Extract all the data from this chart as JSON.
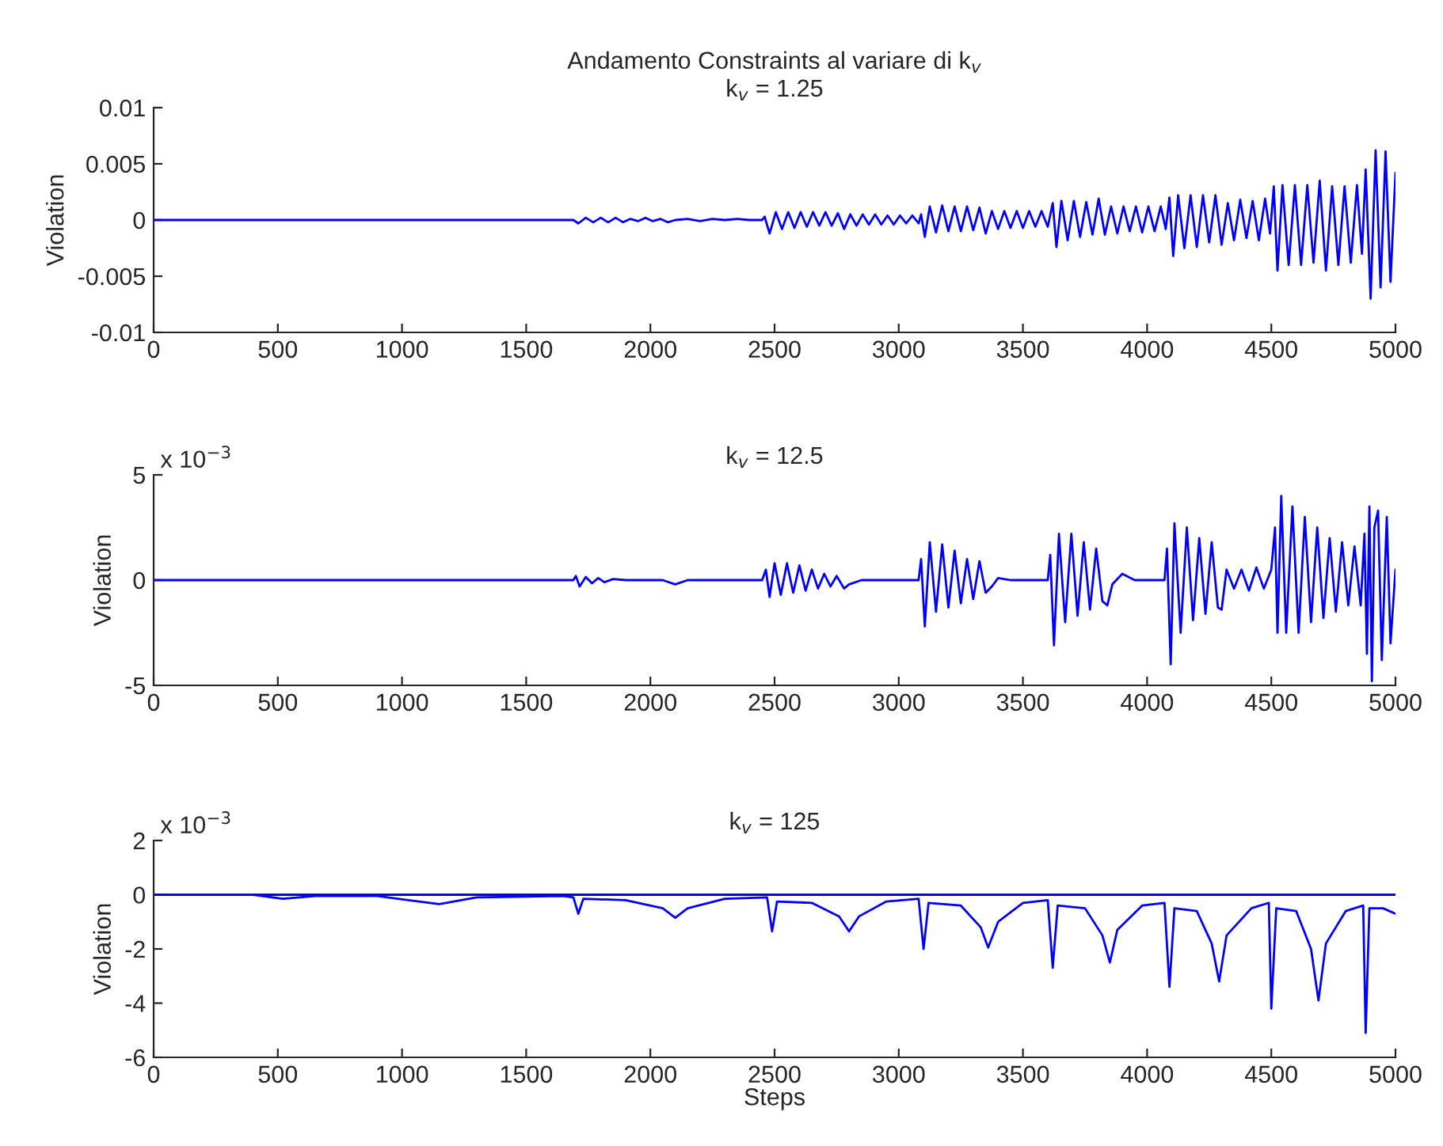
{
  "chart_data": [
    {
      "type": "line",
      "title": "Andamento Constraints al variare di k$_{v}$",
      "subtitle": "k$_{v}$ = 1.25",
      "ylabel": "Violation",
      "xlim": [
        0,
        5000
      ],
      "xticks": [
        0,
        500,
        1000,
        1500,
        2000,
        2500,
        3000,
        3500,
        4000,
        4500,
        5000
      ],
      "ylim": [
        -0.01,
        0.01
      ],
      "yticks": [
        -0.01,
        -0.005,
        0,
        0.005,
        0.01
      ],
      "grid": false,
      "series": [
        {
          "color": "#0000ff",
          "x": [
            0,
            1690,
            1710,
            1740,
            1770,
            1800,
            1830,
            1860,
            1890,
            1920,
            1950,
            1980,
            2010,
            2040,
            2070,
            2100,
            2150,
            2200,
            2250,
            2300,
            2350,
            2400,
            2450,
            2460,
            2480,
            2505,
            2530,
            2555,
            2580,
            2605,
            2630,
            2655,
            2680,
            2705,
            2730,
            2755,
            2780,
            2805,
            2830,
            2855,
            2880,
            2905,
            2930,
            2955,
            2980,
            3005,
            3030,
            3055,
            3080,
            3090,
            3105,
            3125,
            3150,
            3175,
            3200,
            3225,
            3250,
            3275,
            3300,
            3325,
            3350,
            3375,
            3400,
            3425,
            3450,
            3475,
            3500,
            3525,
            3550,
            3575,
            3600,
            3620,
            3635,
            3655,
            3680,
            3705,
            3730,
            3755,
            3780,
            3805,
            3830,
            3855,
            3880,
            3905,
            3930,
            3955,
            3980,
            4005,
            4030,
            4055,
            4075,
            4090,
            4105,
            4125,
            4150,
            4175,
            4200,
            4225,
            4250,
            4275,
            4300,
            4325,
            4350,
            4375,
            4400,
            4425,
            4450,
            4475,
            4495,
            4510,
            4525,
            4545,
            4570,
            4595,
            4620,
            4645,
            4670,
            4695,
            4720,
            4745,
            4770,
            4795,
            4820,
            4845,
            4865,
            4880,
            4900,
            4920,
            4940,
            4960,
            4980,
            5000
          ],
          "values": [
            0,
            0,
            -0.0003,
            0.0002,
            -0.0002,
            0.0002,
            -0.0002,
            0.0002,
            -0.0002,
            0.0001,
            -0.0001,
            0.0002,
            -0.0001,
            0.0001,
            -0.0002,
            0,
            0.0001,
            -0.0001,
            0.0001,
            0,
            0.0001,
            0,
            0,
            0.0003,
            -0.0012,
            0.0007,
            -0.0008,
            0.0007,
            -0.0007,
            0.0007,
            -0.0006,
            0.0007,
            -0.0005,
            0.0007,
            -0.0005,
            0.0006,
            -0.0008,
            0.0005,
            -0.0005,
            0.0005,
            -0.0004,
            0.0005,
            -0.0004,
            0.0004,
            -0.0004,
            0.0004,
            -0.0003,
            0.0004,
            -0.0003,
            0.0005,
            -0.0015,
            0.0012,
            -0.0011,
            0.0013,
            -0.001,
            0.0012,
            -0.001,
            0.0012,
            -0.0009,
            0.0011,
            -0.0012,
            0.0008,
            -0.0008,
            0.0008,
            -0.0007,
            0.0008,
            -0.0007,
            0.0008,
            -0.0006,
            0.0008,
            -0.0006,
            0.0015,
            -0.0024,
            0.0017,
            -0.0018,
            0.0017,
            -0.0015,
            0.0016,
            -0.0013,
            0.0019,
            -0.0013,
            0.0012,
            -0.0012,
            0.0012,
            -0.001,
            0.0012,
            -0.0011,
            0.0012,
            -0.001,
            0.0012,
            -0.0008,
            0.002,
            -0.0032,
            0.0022,
            -0.0025,
            0.0022,
            -0.0024,
            0.0022,
            -0.002,
            0.0022,
            -0.0022,
            0.0015,
            -0.0018,
            0.0018,
            -0.0016,
            0.0017,
            -0.0018,
            0.0019,
            -0.0012,
            0.003,
            -0.0045,
            0.0031,
            -0.004,
            0.0031,
            -0.004,
            0.0031,
            -0.0038,
            0.0035,
            -0.0045,
            0.003,
            -0.004,
            0.003,
            -0.0038,
            0.0031,
            -0.003,
            0.0045,
            -0.007,
            0.0062,
            -0.006,
            0.0061,
            -0.0055,
            0.0042
          ]
        }
      ]
    },
    {
      "type": "line",
      "title": "k$_{v}$ = 12.5",
      "ylabel": "Violation",
      "annotations": [
        "x 10$^{−3}$"
      ],
      "xlim": [
        0,
        5000
      ],
      "xticks": [
        0,
        500,
        1000,
        1500,
        2000,
        2500,
        3000,
        3500,
        4000,
        4500,
        5000
      ],
      "ylim": [
        -5,
        5
      ],
      "yticks": [
        -5,
        0,
        5
      ],
      "grid": false,
      "series": [
        {
          "color": "#0000ff",
          "x": [
            0,
            1690,
            1700,
            1715,
            1740,
            1765,
            1790,
            1815,
            1850,
            1900,
            2050,
            2100,
            2150,
            2450,
            2465,
            2480,
            2500,
            2525,
            2550,
            2575,
            2600,
            2625,
            2650,
            2675,
            2700,
            2725,
            2750,
            2780,
            2800,
            2850,
            3080,
            3090,
            3105,
            3125,
            3150,
            3175,
            3200,
            3225,
            3250,
            3275,
            3300,
            3325,
            3350,
            3375,
            3400,
            3450,
            3600,
            3610,
            3625,
            3645,
            3670,
            3695,
            3720,
            3745,
            3770,
            3795,
            3820,
            3840,
            3860,
            3900,
            3950,
            4070,
            4080,
            4095,
            4110,
            4135,
            4160,
            4185,
            4210,
            4235,
            4260,
            4285,
            4300,
            4320,
            4350,
            4380,
            4410,
            4440,
            4470,
            4500,
            4515,
            4525,
            4540,
            4560,
            4585,
            4610,
            4635,
            4660,
            4685,
            4710,
            4735,
            4760,
            4785,
            4810,
            4835,
            4860,
            4875,
            4885,
            4895,
            4905,
            4915,
            4930,
            4945,
            4965,
            4980,
            5000
          ],
          "values": [
            0,
            0,
            0.2,
            -0.3,
            0.15,
            -0.15,
            0.1,
            -0.1,
            0.05,
            0,
            0,
            -0.2,
            0,
            0,
            0.5,
            -0.8,
            0.8,
            -0.7,
            0.8,
            -0.6,
            0.7,
            -0.5,
            0.5,
            -0.4,
            0.3,
            -0.3,
            0.2,
            -0.4,
            -0.2,
            0,
            0,
            1.0,
            -2.2,
            1.8,
            -1.5,
            1.7,
            -1.3,
            1.4,
            -1.1,
            1.0,
            -0.9,
            0.9,
            -0.6,
            -0.3,
            0.1,
            0,
            0,
            1.2,
            -3.1,
            2.2,
            -2.0,
            2.2,
            -1.7,
            1.8,
            -1.4,
            1.5,
            -1.0,
            -1.2,
            -0.2,
            0.3,
            0,
            0,
            1.5,
            -4.0,
            2.7,
            -2.5,
            2.5,
            -1.9,
            2.0,
            -1.6,
            1.8,
            -1.3,
            -1.4,
            0.5,
            -0.4,
            0.5,
            -0.5,
            0.6,
            -0.4,
            0.5,
            2.5,
            -2.5,
            4.0,
            -2.5,
            3.5,
            -2.5,
            3.0,
            -2.0,
            2.5,
            -1.8,
            2.0,
            -1.5,
            1.8,
            -1.2,
            1.6,
            -1.2,
            2.2,
            -3.5,
            3.5,
            -4.8,
            2.5,
            3.3,
            -3.8,
            3.0,
            -3.0,
            0.5
          ]
        }
      ]
    },
    {
      "type": "line",
      "title": "k$_{v}$ = 125",
      "ylabel": "Violation",
      "xlabel": "Steps",
      "annotations": [
        "x 10$^{−3}$"
      ],
      "xlim": [
        0,
        5000
      ],
      "xticks": [
        0,
        500,
        1000,
        1500,
        2000,
        2500,
        3000,
        3500,
        4000,
        4500,
        5000
      ],
      "ylim": [
        -6,
        2
      ],
      "yticks": [
        -6,
        -4,
        -2,
        0,
        2
      ],
      "grid": false,
      "series": [
        {
          "color": "#0000ff",
          "x": [
            0,
            5000
          ],
          "values": [
            0,
            0
          ]
        },
        {
          "color": "#0000ff",
          "x": [
            0,
            400,
            520,
            650,
            900,
            1150,
            1300,
            1650,
            1690,
            1710,
            1730,
            1900,
            2050,
            2100,
            2150,
            2300,
            2470,
            2490,
            2510,
            2650,
            2760,
            2800,
            2840,
            2950,
            3080,
            3100,
            3120,
            3250,
            3330,
            3360,
            3400,
            3500,
            3600,
            3620,
            3640,
            3750,
            3820,
            3850,
            3880,
            3980,
            4070,
            4090,
            4110,
            4200,
            4260,
            4290,
            4320,
            4420,
            4490,
            4500,
            4520,
            4600,
            4660,
            4690,
            4720,
            4800,
            4870,
            4880,
            4895,
            4950,
            5000
          ],
          "values": [
            0,
            0,
            -0.15,
            -0.05,
            -0.05,
            -0.35,
            -0.1,
            -0.05,
            -0.1,
            -0.7,
            -0.15,
            -0.2,
            -0.5,
            -0.85,
            -0.5,
            -0.15,
            -0.1,
            -1.35,
            -0.25,
            -0.3,
            -0.8,
            -1.35,
            -0.8,
            -0.25,
            -0.15,
            -2.0,
            -0.3,
            -0.4,
            -1.2,
            -1.95,
            -1.0,
            -0.3,
            -0.2,
            -2.7,
            -0.4,
            -0.5,
            -1.5,
            -2.5,
            -1.3,
            -0.4,
            -0.3,
            -3.4,
            -0.5,
            -0.6,
            -1.8,
            -3.2,
            -1.5,
            -0.5,
            -0.3,
            -4.2,
            -0.5,
            -0.6,
            -2.0,
            -3.9,
            -1.8,
            -0.6,
            -0.4,
            -5.1,
            -0.5,
            -0.5,
            -0.7
          ]
        }
      ]
    }
  ]
}
